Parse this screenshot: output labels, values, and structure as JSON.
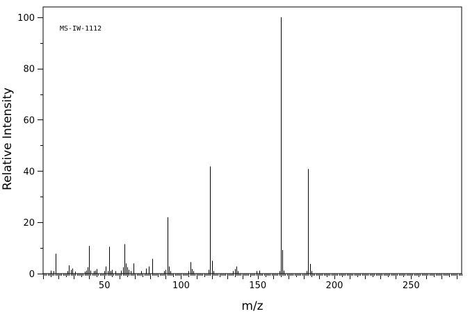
{
  "chart_data": {
    "type": "bar",
    "title": "",
    "annotation": "MS-IW-1112",
    "xlabel": "m/z",
    "ylabel": "Relative Intensity",
    "xlim": [
      10,
      283
    ],
    "ylim": [
      0,
      104
    ],
    "x_ticks": [
      50,
      100,
      150,
      200,
      250
    ],
    "y_ticks": [
      0,
      20,
      40,
      60,
      80,
      100
    ],
    "x_tick_labels": [
      "50",
      "100",
      "150",
      "200",
      "250"
    ],
    "y_tick_labels": [
      "0",
      "20",
      "40",
      "60",
      "80",
      "100"
    ],
    "grid": false,
    "legend": "none",
    "series": [
      {
        "peaks": [
          [
            15,
            1.2
          ],
          [
            17,
            1.0
          ],
          [
            18,
            7.8
          ],
          [
            26,
            1.0
          ],
          [
            27,
            3.2
          ],
          [
            28,
            1.5
          ],
          [
            29,
            2.0
          ],
          [
            31,
            0.8
          ],
          [
            37,
            0.8
          ],
          [
            38,
            1.2
          ],
          [
            39,
            2.5
          ],
          [
            40,
            10.8
          ],
          [
            41,
            1.2
          ],
          [
            43,
            1.0
          ],
          [
            44,
            1.2
          ],
          [
            45,
            1.8
          ],
          [
            50,
            1.0
          ],
          [
            51,
            2.8
          ],
          [
            52,
            1.0
          ],
          [
            53,
            10.5
          ],
          [
            54,
            1.0
          ],
          [
            55,
            1.5
          ],
          [
            57,
            1.0
          ],
          [
            61,
            1.2
          ],
          [
            62,
            2.5
          ],
          [
            63,
            11.5
          ],
          [
            64,
            4.0
          ],
          [
            65,
            2.5
          ],
          [
            66,
            1.5
          ],
          [
            67,
            1.0
          ],
          [
            69,
            4.0
          ],
          [
            74,
            1.0
          ],
          [
            77,
            2.0
          ],
          [
            79,
            2.8
          ],
          [
            81,
            5.8
          ],
          [
            89,
            1.0
          ],
          [
            90,
            1.5
          ],
          [
            91,
            22.0
          ],
          [
            92,
            2.8
          ],
          [
            93,
            1.0
          ],
          [
            105,
            1.0
          ],
          [
            106,
            4.5
          ],
          [
            107,
            1.8
          ],
          [
            108,
            1.0
          ],
          [
            118,
            1.5
          ],
          [
            119,
            41.8
          ],
          [
            120,
            5.0
          ],
          [
            121,
            1.0
          ],
          [
            134,
            1.0
          ],
          [
            135,
            1.8
          ],
          [
            136,
            2.8
          ],
          [
            137,
            1.0
          ],
          [
            149,
            1.0
          ],
          [
            151,
            1.2
          ],
          [
            164,
            1.0
          ],
          [
            165,
            100
          ],
          [
            166,
            9.2
          ],
          [
            167,
            1.2
          ],
          [
            182,
            1.0
          ],
          [
            183,
            40.8
          ],
          [
            184,
            3.8
          ],
          [
            185,
            1.0
          ]
        ]
      }
    ]
  }
}
